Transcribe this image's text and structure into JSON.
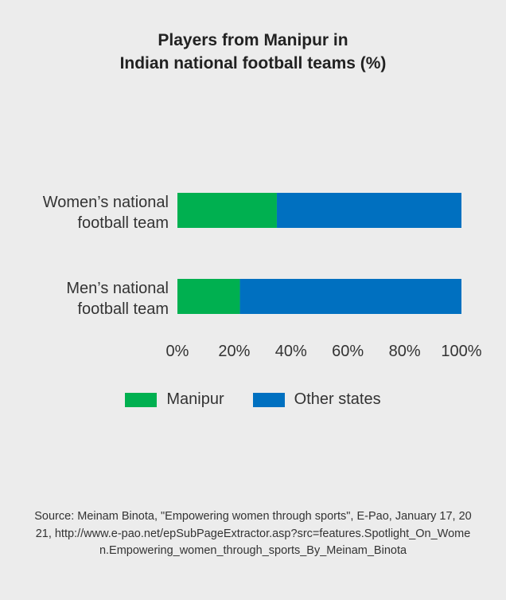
{
  "title_lines": [
    "Players from Manipur in",
    "Indian national football teams (%)"
  ],
  "source": "Source: Meinam Binota, \"Empowering women through sports\", E-Pao, January 17, 2021, http://www.e-pao.net/epSubPageExtractor.asp?src=features.Spotlight_On_Women.Empowering_women_through_sports_By_Meinam_Binota",
  "colors": {
    "manipur": "#00b050",
    "other": "#0070c0",
    "background": "#ececec"
  },
  "chart_data": {
    "type": "bar",
    "orientation": "horizontal",
    "stacked": true,
    "title": "Players from Manipur in Indian national football teams (%)",
    "categories": [
      [
        "Women’s national",
        "football team"
      ],
      [
        "Men’s national",
        "football team"
      ]
    ],
    "series": [
      {
        "name": "Manipur",
        "color": "#00b050",
        "values": [
          35,
          22
        ]
      },
      {
        "name": "Other states",
        "color": "#0070c0",
        "values": [
          65,
          78
        ]
      }
    ],
    "xlim": [
      0,
      100
    ],
    "x_ticks": [
      "0%",
      "20%",
      "40%",
      "60%",
      "80%",
      "100%"
    ],
    "grid": false,
    "legend_position": "bottom"
  }
}
